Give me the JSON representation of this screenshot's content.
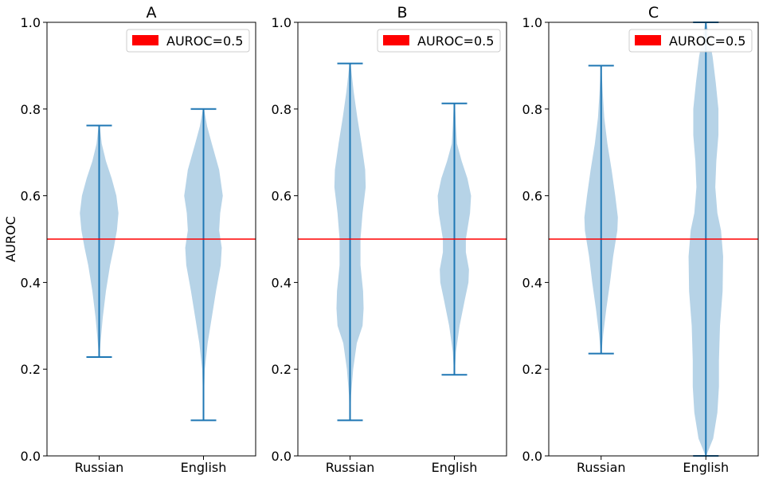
{
  "chart_data": [
    {
      "type": "violin",
      "title": "A",
      "categories": [
        "Russian",
        "English"
      ],
      "ylabel": "AUROC",
      "ylim": [
        0.0,
        1.0
      ],
      "yticks": [
        "0.0",
        "0.2",
        "0.4",
        "0.6",
        "0.8",
        "1.0"
      ],
      "reference_line": {
        "y": 0.5,
        "label": "AUROC=0.5",
        "color": "#ff0000"
      },
      "legend_position": "upper right",
      "violin_color": "#a9cbe3",
      "line_color": "#1f77b4",
      "series": [
        {
          "min": 0.228,
          "max": 0.762,
          "profile": [
            [
              0.228,
              0.005
            ],
            [
              0.26,
              0.025
            ],
            [
              0.32,
              0.07
            ],
            [
              0.38,
              0.13
            ],
            [
              0.44,
              0.21
            ],
            [
              0.48,
              0.28
            ],
            [
              0.52,
              0.34
            ],
            [
              0.56,
              0.37
            ],
            [
              0.6,
              0.33
            ],
            [
              0.64,
              0.24
            ],
            [
              0.68,
              0.13
            ],
            [
              0.72,
              0.05
            ],
            [
              0.762,
              0.01
            ]
          ]
        },
        {
          "min": 0.082,
          "max": 0.8,
          "profile": [
            [
              0.082,
              0.003
            ],
            [
              0.14,
              0.01
            ],
            [
              0.2,
              0.025
            ],
            [
              0.26,
              0.08
            ],
            [
              0.32,
              0.16
            ],
            [
              0.38,
              0.24
            ],
            [
              0.44,
              0.33
            ],
            [
              0.48,
              0.35
            ],
            [
              0.52,
              0.3
            ],
            [
              0.56,
              0.32
            ],
            [
              0.6,
              0.37
            ],
            [
              0.66,
              0.3
            ],
            [
              0.72,
              0.16
            ],
            [
              0.76,
              0.07
            ],
            [
              0.8,
              0.01
            ]
          ]
        }
      ]
    },
    {
      "type": "violin",
      "title": "B",
      "categories": [
        "Russian",
        "English"
      ],
      "ylabel": "",
      "ylim": [
        0.0,
        1.0
      ],
      "yticks": [
        "0.0",
        "0.2",
        "0.4",
        "0.6",
        "0.8",
        "1.0"
      ],
      "reference_line": {
        "y": 0.5,
        "label": "AUROC=0.5",
        "color": "#ff0000"
      },
      "legend_position": "upper right",
      "violin_color": "#a9cbe3",
      "line_color": "#1f77b4",
      "series": [
        {
          "min": 0.082,
          "max": 0.905,
          "profile": [
            [
              0.082,
              0.005
            ],
            [
              0.14,
              0.02
            ],
            [
              0.2,
              0.06
            ],
            [
              0.26,
              0.13
            ],
            [
              0.3,
              0.24
            ],
            [
              0.34,
              0.26
            ],
            [
              0.38,
              0.25
            ],
            [
              0.44,
              0.2
            ],
            [
              0.5,
              0.2
            ],
            [
              0.56,
              0.24
            ],
            [
              0.62,
              0.3
            ],
            [
              0.66,
              0.29
            ],
            [
              0.72,
              0.22
            ],
            [
              0.78,
              0.14
            ],
            [
              0.84,
              0.07
            ],
            [
              0.905,
              0.01
            ]
          ]
        },
        {
          "min": 0.187,
          "max": 0.813,
          "profile": [
            [
              0.187,
              0.005
            ],
            [
              0.24,
              0.03
            ],
            [
              0.3,
              0.1
            ],
            [
              0.36,
              0.2
            ],
            [
              0.4,
              0.27
            ],
            [
              0.43,
              0.28
            ],
            [
              0.47,
              0.22
            ],
            [
              0.5,
              0.22
            ],
            [
              0.56,
              0.3
            ],
            [
              0.6,
              0.32
            ],
            [
              0.64,
              0.25
            ],
            [
              0.68,
              0.14
            ],
            [
              0.72,
              0.05
            ],
            [
              0.76,
              0.03
            ],
            [
              0.813,
              0.01
            ]
          ]
        }
      ]
    },
    {
      "type": "violin",
      "title": "C",
      "categories": [
        "Russian",
        "English"
      ],
      "ylabel": "",
      "ylim": [
        0.0,
        1.0
      ],
      "yticks": [
        "0.0",
        "0.2",
        "0.4",
        "0.6",
        "0.8",
        "1.0"
      ],
      "reference_line": {
        "y": 0.5,
        "label": "AUROC=0.5",
        "color": "#ff0000"
      },
      "legend_position": "upper right",
      "violin_color": "#a9cbe3",
      "line_color": "#1f77b4",
      "series": [
        {
          "min": 0.236,
          "max": 0.9,
          "profile": [
            [
              0.236,
              0.005
            ],
            [
              0.28,
              0.04
            ],
            [
              0.34,
              0.1
            ],
            [
              0.4,
              0.17
            ],
            [
              0.46,
              0.23
            ],
            [
              0.52,
              0.31
            ],
            [
              0.55,
              0.32
            ],
            [
              0.6,
              0.27
            ],
            [
              0.66,
              0.2
            ],
            [
              0.72,
              0.12
            ],
            [
              0.78,
              0.06
            ],
            [
              0.84,
              0.03
            ],
            [
              0.9,
              0.005
            ]
          ]
        },
        {
          "min": 0.0,
          "max": 1.0,
          "profile": [
            [
              0.0,
              0.005
            ],
            [
              0.04,
              0.14
            ],
            [
              0.1,
              0.22
            ],
            [
              0.16,
              0.25
            ],
            [
              0.22,
              0.25
            ],
            [
              0.3,
              0.27
            ],
            [
              0.38,
              0.32
            ],
            [
              0.46,
              0.33
            ],
            [
              0.52,
              0.29
            ],
            [
              0.56,
              0.22
            ],
            [
              0.62,
              0.18
            ],
            [
              0.68,
              0.2
            ],
            [
              0.74,
              0.24
            ],
            [
              0.8,
              0.24
            ],
            [
              0.86,
              0.19
            ],
            [
              0.92,
              0.13
            ],
            [
              0.96,
              0.07
            ],
            [
              1.0,
              0.01
            ]
          ]
        }
      ]
    }
  ]
}
